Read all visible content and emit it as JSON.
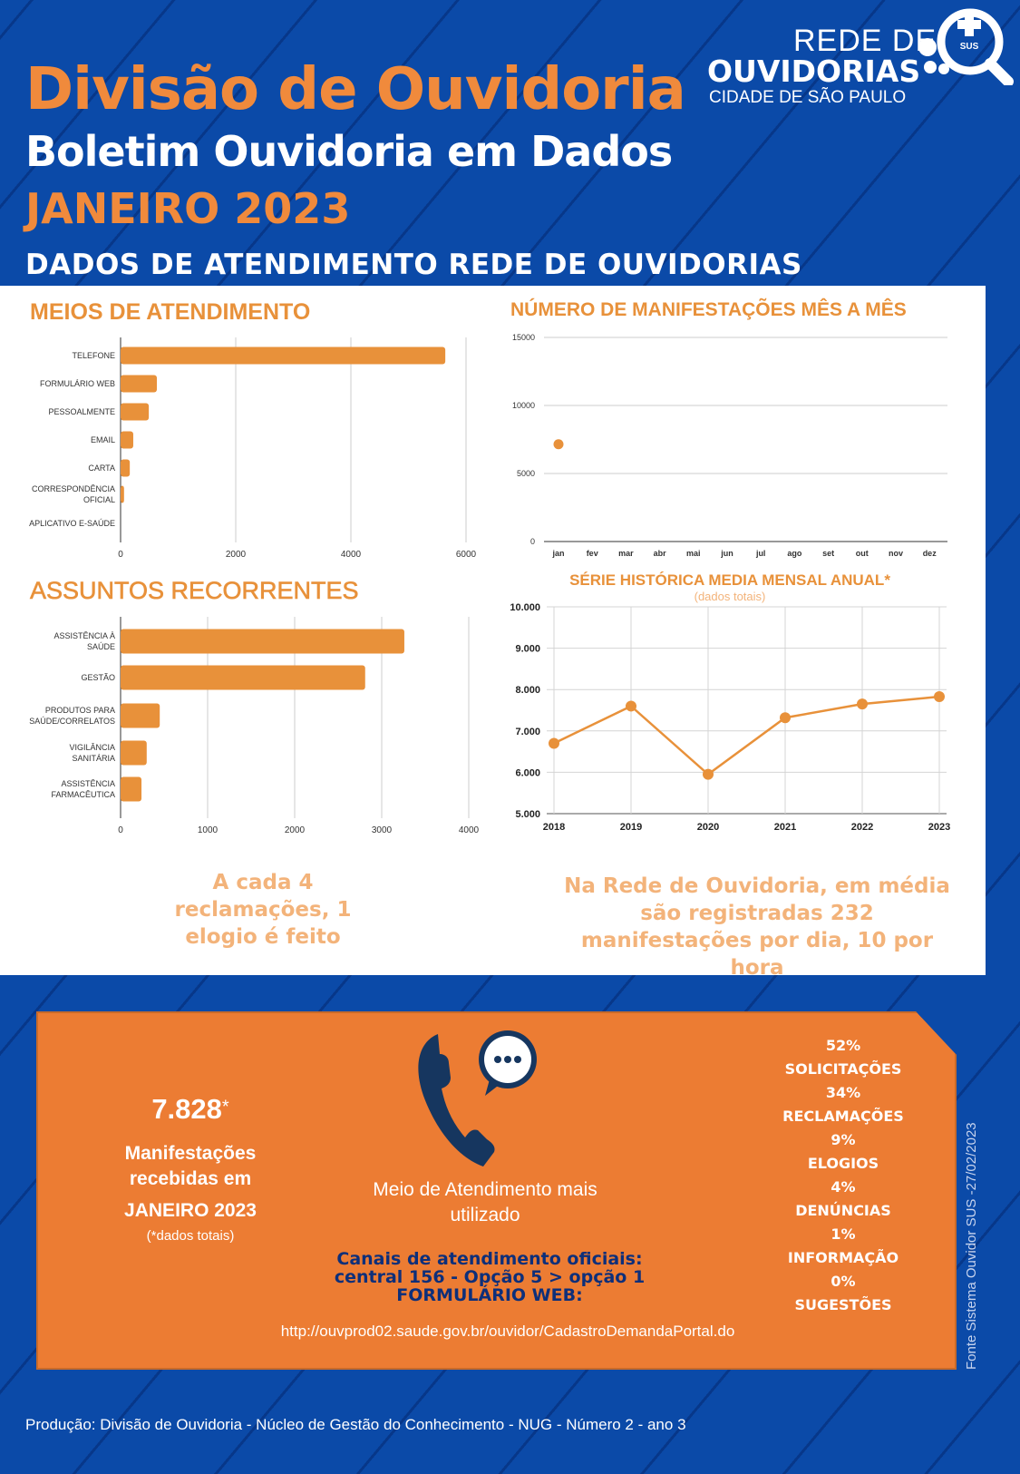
{
  "header": {
    "title": "Divisão de Ouvidoria",
    "subtitle": "Boletim Ouvidoria em Dados",
    "period": "JANEIRO 2023",
    "section": "DADOS DE ATENDIMENTO REDE DE OUVIDORIAS"
  },
  "logo": {
    "line1": "REDE DE",
    "line2": "OUVIDORIAS",
    "line3": "CIDADE DE SÃO PAULO",
    "badge": "SUS"
  },
  "colors": {
    "blue": "#0b4aa8",
    "orange": "#ec7c33",
    "chart_orange": "#e8913a",
    "navy": "#0d2f7a"
  },
  "chart_data": [
    {
      "type": "bar",
      "orientation": "horizontal",
      "title": "MEIOS DE ATENDIMENTO",
      "categories": [
        "TELEFONE",
        "FORMULÁRIO WEB",
        "PESSOALMENTE",
        "EMAIL",
        "CARTA",
        "CORRESPONDÊNCIA OFICIAL",
        "APLICATIVO E-SAÚDE"
      ],
      "values": [
        5640,
        630,
        490,
        220,
        160,
        60,
        0
      ],
      "xlim": [
        0,
        6000
      ],
      "xticks": [
        "0",
        "2000",
        "4000",
        "6000"
      ],
      "grid": true
    },
    {
      "type": "bar",
      "orientation": "horizontal",
      "title": "ASSUNTOS RECORRENTES",
      "categories": [
        "ASSISTÊNCIA À SAÚDE",
        "GESTÃO",
        "PRODUTOS PARA SAÚDE/CORRELATOS",
        "VIGILÂNCIA SANITÁRIA",
        "ASSISTÊNCIA FARMACÊUTICA"
      ],
      "values": [
        3260,
        2810,
        450,
        300,
        240
      ],
      "xlim": [
        0,
        4000
      ],
      "xticks": [
        "0",
        "1000",
        "2000",
        "3000",
        "4000"
      ],
      "grid": true
    },
    {
      "type": "scatter",
      "title": "NÚMERO DE MANIFESTAÇÕES MÊS A MÊS",
      "categories": [
        "jan",
        "fev",
        "mar",
        "abr",
        "mai",
        "jun",
        "jul",
        "ago",
        "set",
        "out",
        "nov",
        "dez"
      ],
      "values": [
        7150
      ],
      "ylim": [
        0,
        15000
      ],
      "yticks": [
        "0",
        "5000",
        "10000",
        "15000"
      ],
      "grid": true
    },
    {
      "type": "line",
      "title": "SÉRIE HISTÓRICA MEDIA MENSAL ANUAL*",
      "subtitle": "(dados totais)",
      "x": [
        "2018",
        "2019",
        "2020",
        "2021",
        "2022",
        "2023"
      ],
      "values": [
        6700,
        7600,
        5950,
        7320,
        7650,
        7828
      ],
      "ylim": [
        5000,
        10000
      ],
      "yticks": [
        "5.000",
        "6.000",
        "7.000",
        "8.000",
        "9.000",
        "10.000"
      ],
      "grid": true
    }
  ],
  "facts": {
    "left": "A cada 4 reclamações, 1 elogio é feito",
    "right": "Na Rede de Ouvidoria, em média são registradas 232 manifestações por dia, 10 por hora"
  },
  "summary": {
    "total": "7.828",
    "asterisk": "*",
    "label": "Manifestações recebidas em",
    "period": "JANEIRO 2023",
    "note": "(*dados totais)",
    "channel_label": "Meio de Atendimento mais utilizado",
    "canais_l1": "Canais de atendimento oficiais:",
    "canais_l2": "central 156 - Opção 5 > opção 1",
    "canais_l3": "FORMULÁRIO WEB:",
    "url": "http://ouvprod02.saude.gov.br/ouvidor/CadastroDemandaPortal.do",
    "types": [
      {
        "pct": "52%",
        "label": "SOLICITAÇÕES"
      },
      {
        "pct": "34%",
        "label": "RECLAMAÇÕES"
      },
      {
        "pct": "9%",
        "label": "ELOGIOS"
      },
      {
        "pct": "4%",
        "label": "DENÚNCIAS"
      },
      {
        "pct": "1%",
        "label": "INFORMAÇÃO"
      },
      {
        "pct": "0%",
        "label": "SUGESTÕES"
      }
    ]
  },
  "source": "Fonte Sistema Ouvidor SUS -27/02/2023",
  "footer": "Produção: Divisão de Ouvidoria - Núcleo de Gestão do Conhecimento - NUG - Número 2 - ano 3"
}
